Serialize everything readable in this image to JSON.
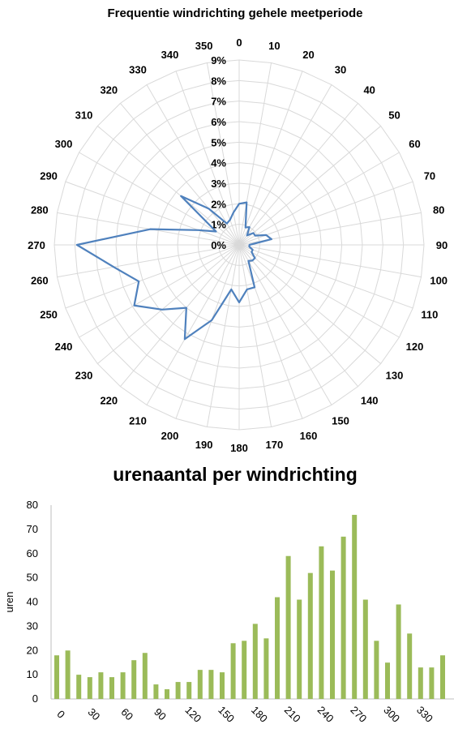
{
  "chart_data": [
    {
      "type": "radar",
      "title": "Frequentie windrichting gehele meetperiode",
      "angle_labels": [
        "0",
        "10",
        "20",
        "30",
        "40",
        "50",
        "60",
        "70",
        "80",
        "90",
        "100",
        "110",
        "120",
        "130",
        "140",
        "150",
        "160",
        "170",
        "180",
        "190",
        "200",
        "210",
        "220",
        "230",
        "240",
        "250",
        "260",
        "270",
        "280",
        "290",
        "300",
        "310",
        "320",
        "330",
        "340",
        "350"
      ],
      "radial_tick_labels": [
        "0%",
        "1%",
        "2%",
        "3%",
        "4%",
        "5%",
        "6%",
        "7%",
        "8%",
        "9%"
      ],
      "rmax": 9,
      "grid": true,
      "series": [
        {
          "color": "#4F81BD",
          "values": [
            2.0,
            2.1,
            0.9,
            1.0,
            0.6,
            0.9,
            0.9,
            1.4,
            1.6,
            0.5,
            0.5,
            0.7,
            0.7,
            1.0,
            1.0,
            0.9,
            2.2,
            2.2,
            2.8,
            2.2,
            3.9,
            5.3,
            4.0,
            4.9,
            5.9,
            5.2,
            6.2,
            7.9,
            4.4,
            2.1,
            1.3,
            3.7,
            2.3,
            1.2,
            1.3,
            1.6
          ]
        }
      ]
    },
    {
      "type": "bar",
      "title": "urenaantal per windrichting",
      "ylabel": "uren",
      "ylim": [
        0,
        80
      ],
      "yticks": [
        "0",
        "10",
        "20",
        "30",
        "40",
        "50",
        "60",
        "70",
        "80"
      ],
      "xtick_labels": [
        "0",
        "30",
        "60",
        "90",
        "120",
        "150",
        "180",
        "210",
        "240",
        "270",
        "300",
        "330"
      ],
      "color": "#9BBB59",
      "categories": [
        "0",
        "10",
        "20",
        "30",
        "40",
        "50",
        "60",
        "70",
        "80",
        "90",
        "100",
        "110",
        "120",
        "130",
        "140",
        "150",
        "160",
        "170",
        "180",
        "190",
        "200",
        "210",
        "220",
        "230",
        "240",
        "250",
        "260",
        "270",
        "280",
        "290",
        "300",
        "310",
        "320",
        "330",
        "340",
        "350"
      ],
      "values": [
        18,
        20,
        10,
        9,
        11,
        9,
        11,
        16,
        19,
        6,
        4,
        7,
        7,
        12,
        12,
        11,
        23,
        24,
        31,
        25,
        42,
        59,
        41,
        52,
        63,
        53,
        67,
        76,
        41,
        24,
        15,
        39,
        27,
        13,
        13,
        18
      ]
    }
  ]
}
